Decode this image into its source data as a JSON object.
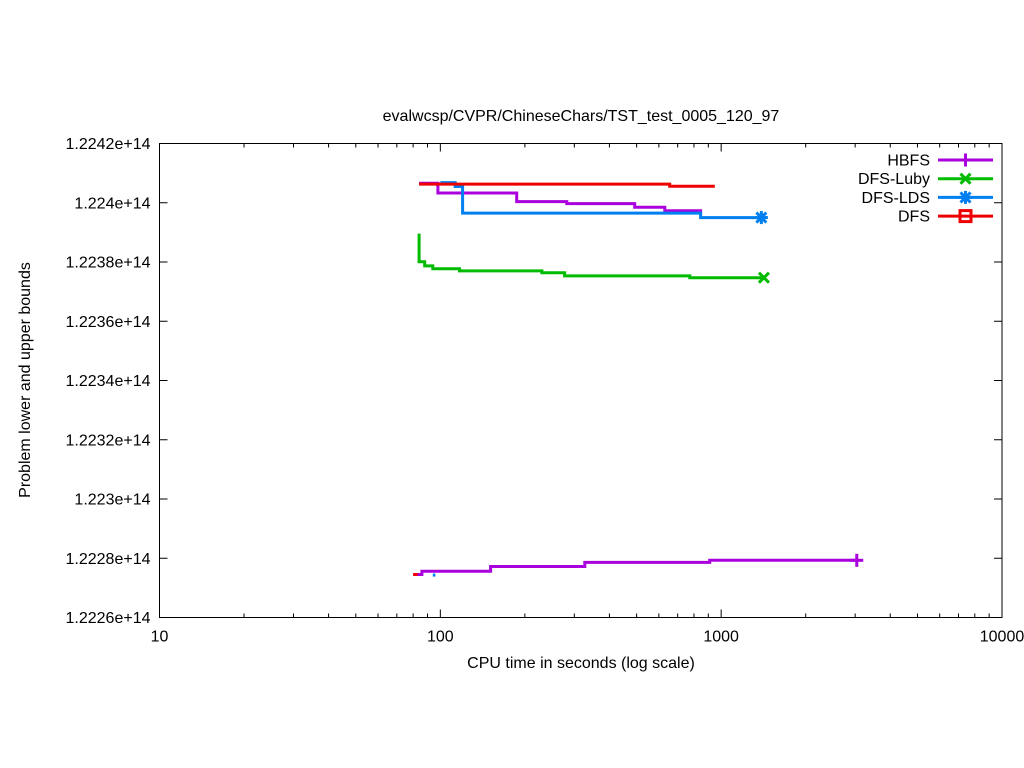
{
  "page": {
    "background": "#ffffff",
    "text_color": "#000000"
  },
  "chart_data": {
    "type": "line",
    "title": "evalwcsp/CVPR/ChineseChars/TST_test_0005_120_97",
    "xlabel": "CPU time in seconds (log scale)",
    "ylabel": "Problem lower and upper bounds",
    "x_scale": "log",
    "grid": false,
    "legend_position": "top-right-inside",
    "axis_color": "#000000",
    "xlim": [
      10,
      10000
    ],
    "ylim": [
      122260000000000.0,
      122420000000000.0
    ],
    "x_ticks": [
      {
        "value": 10,
        "label": "10"
      },
      {
        "value": 100,
        "label": "100"
      },
      {
        "value": 1000,
        "label": "1000"
      },
      {
        "value": 10000,
        "label": "10000"
      }
    ],
    "y_ticks": [
      {
        "value": 122420000000000.0,
        "label": "1.2242e+14"
      },
      {
        "value": 122400000000000.0,
        "label": "1.224e+14"
      },
      {
        "value": 122380000000000.0,
        "label": "1.2238e+14"
      },
      {
        "value": 122360000000000.0,
        "label": "1.2236e+14"
      },
      {
        "value": 122340000000000.0,
        "label": "1.2234e+14"
      },
      {
        "value": 122320000000000.0,
        "label": "1.2232e+14"
      },
      {
        "value": 122300000000000.0,
        "label": "1.223e+14"
      },
      {
        "value": 122280000000000.0,
        "label": "1.2228e+14"
      },
      {
        "value": 122260000000000.0,
        "label": "1.2226e+14"
      }
    ],
    "series": [
      {
        "name": "HBFS",
        "legend_label": "HBFS",
        "color": "#AA00DD",
        "marker": "plus",
        "lines": [
          {
            "role": "upper-bound",
            "end_marker": false,
            "points": [
              [
                84,
                122406600000000.0
              ],
              [
                98,
                122406600000000.0
              ],
              [
                98,
                122403300000000.0
              ],
              [
                187,
                122403300000000.0
              ],
              [
                187,
                122400400000000.0
              ],
              [
                282,
                122400400000000.0
              ],
              [
                282,
                122399700000000.0
              ],
              [
                492,
                122399700000000.0
              ],
              [
                492,
                122398500000000.0
              ],
              [
                630,
                122398500000000.0
              ],
              [
                630,
                122397300000000.0
              ],
              [
                845,
                122397300000000.0
              ],
              [
                845,
                122396000000000.0
              ]
            ]
          },
          {
            "role": "lower-bound",
            "end_marker": true,
            "points": [
              [
                81,
                122274500000000.0
              ],
              [
                86,
                122274500000000.0
              ],
              [
                86,
                122275600000000.0
              ],
              [
                151,
                122275600000000.0
              ],
              [
                151,
                122277200000000.0
              ],
              [
                327,
                122277200000000.0
              ],
              [
                327,
                122278600000000.0
              ],
              [
                910,
                122278600000000.0
              ],
              [
                910,
                122279300000000.0
              ],
              [
                3040,
                122279300000000.0
              ]
            ]
          }
        ]
      },
      {
        "name": "DFS-Luby",
        "legend_label": "DFS-Luby",
        "color": "#00BB00",
        "marker": "cross",
        "lines": [
          {
            "role": "upper-bound",
            "end_marker": true,
            "points": [
              [
                84,
                122389600000000.0
              ],
              [
                84,
                122380100000000.0
              ],
              [
                88,
                122380100000000.0
              ],
              [
                88,
                122378700000000.0
              ],
              [
                94,
                122378700000000.0
              ],
              [
                94,
                122377700000000.0
              ],
              [
                117,
                122377700000000.0
              ],
              [
                117,
                122377000000000.0
              ],
              [
                230,
                122377000000000.0
              ],
              [
                230,
                122376400000000.0
              ],
              [
                277,
                122376400000000.0
              ],
              [
                277,
                122375300000000.0
              ],
              [
                773,
                122375300000000.0
              ],
              [
                773,
                122374700000000.0
              ],
              [
                1420,
                122374700000000.0
              ]
            ]
          }
        ]
      },
      {
        "name": "DFS-LDS",
        "legend_label": "DFS-LDS",
        "color": "#0080F0",
        "marker": "asterisk",
        "lines": [
          {
            "role": "upper-bound",
            "end_marker": true,
            "points": [
              [
                100,
                122406800000000.0
              ],
              [
                113,
                122406800000000.0
              ],
              [
                113,
                122405500000000.0
              ],
              [
                120,
                122405500000000.0
              ],
              [
                120,
                122396500000000.0
              ],
              [
                845,
                122396500000000.0
              ],
              [
                845,
                122395000000000.0
              ],
              [
                1390,
                122395000000000.0
              ]
            ]
          },
          {
            "role": "lower-bound",
            "end_marker": false,
            "points": [
              [
                94,
                122274300000000.0
              ],
              [
                96,
                122274300000000.0
              ]
            ]
          }
        ]
      },
      {
        "name": "DFS",
        "legend_label": "DFS",
        "color": "#EE0000",
        "marker": "square",
        "lines": [
          {
            "role": "upper-bound",
            "end_marker": false,
            "points": [
              [
                84,
                122406300000000.0
              ],
              [
                656,
                122406300000000.0
              ],
              [
                656,
                122405600000000.0
              ],
              [
                949,
                122405600000000.0
              ]
            ]
          },
          {
            "role": "lower-bound",
            "end_marker": false,
            "points": [
              [
                80,
                122274500000000.0
              ],
              [
                83,
                122274500000000.0
              ]
            ]
          }
        ]
      }
    ]
  }
}
